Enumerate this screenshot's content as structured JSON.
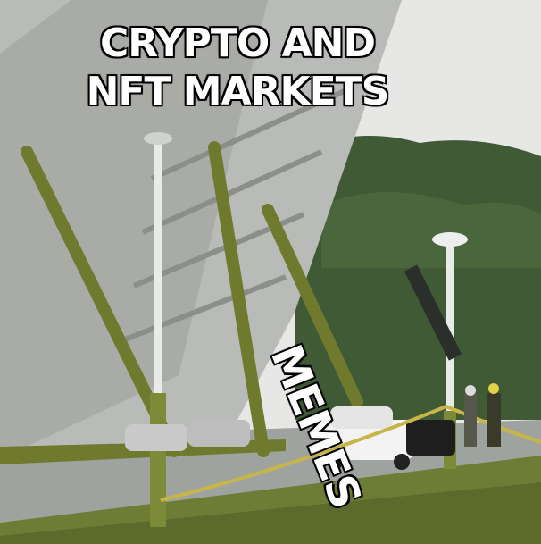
{
  "meme": {
    "top_text_line1": "CRYPTO AND",
    "top_text_line2": "NFT MARKETS",
    "side_text": "MEMES"
  },
  "colors": {
    "sky": "#e7e7e5",
    "trees": "#3f5a34",
    "building": "#b9bbb8",
    "beam": "#6f7a2e",
    "grass": "#6e7d35",
    "road": "#9fa39f",
    "caption_fill": "#ffffff",
    "caption_stroke": "#000000"
  }
}
